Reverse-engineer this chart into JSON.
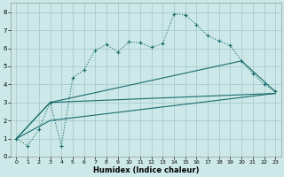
{
  "title": "",
  "xlabel": "Humidex (Indice chaleur)",
  "bg_color": "#cce8e8",
  "grid_color": "#aacccc",
  "line_color": "#1a6b6b",
  "xlim": [
    -0.5,
    23.5
  ],
  "ylim": [
    0,
    8.5
  ],
  "xticks": [
    0,
    1,
    2,
    3,
    4,
    5,
    6,
    7,
    8,
    9,
    10,
    11,
    12,
    13,
    14,
    15,
    16,
    17,
    18,
    19,
    20,
    21,
    22,
    23
  ],
  "yticks": [
    0,
    1,
    2,
    3,
    4,
    5,
    6,
    7,
    8
  ],
  "curve_x": [
    0,
    1,
    2,
    3,
    4,
    5,
    6,
    7,
    8,
    9,
    10,
    11,
    12,
    13,
    14,
    15,
    16,
    17,
    18,
    19,
    20,
    21,
    22,
    23
  ],
  "curve_y": [
    1.0,
    0.6,
    1.5,
    3.0,
    0.6,
    4.35,
    4.8,
    5.9,
    6.2,
    5.8,
    6.35,
    6.3,
    6.05,
    6.25,
    7.9,
    7.85,
    7.3,
    6.7,
    6.4,
    6.15,
    5.3,
    4.6,
    4.0,
    3.6
  ],
  "line2_x": [
    0,
    3,
    23
  ],
  "line2_y": [
    1.0,
    3.0,
    3.5
  ],
  "line3_x": [
    0,
    3,
    20,
    23
  ],
  "line3_y": [
    1.0,
    3.0,
    5.3,
    3.6
  ],
  "line4_x": [
    0,
    3,
    23
  ],
  "line4_y": [
    1.0,
    2.0,
    3.5
  ]
}
